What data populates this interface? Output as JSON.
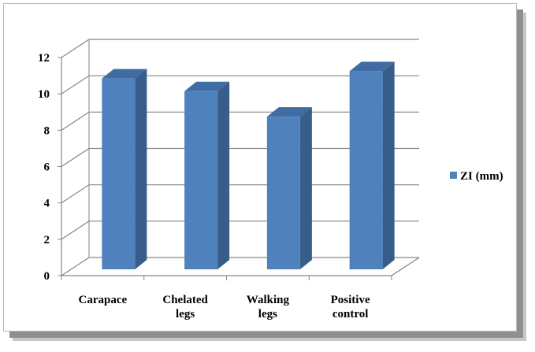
{
  "chart_data": {
    "type": "bar",
    "categories": [
      [
        "Carapace"
      ],
      [
        "Chelated",
        "legs"
      ],
      [
        "Walking",
        "legs"
      ],
      [
        "Positive",
        "control"
      ]
    ],
    "series": [
      {
        "name": "ZI (mm)",
        "values": [
          10.5,
          9.8,
          8.4,
          10.9
        ],
        "color": "#4f81bd"
      }
    ],
    "yticks": [
      "0",
      "2",
      "4",
      "6",
      "8",
      "10",
      "12"
    ],
    "ylim": [
      0,
      12
    ],
    "grid": true,
    "legend_position": "right",
    "style": "3d-column"
  }
}
